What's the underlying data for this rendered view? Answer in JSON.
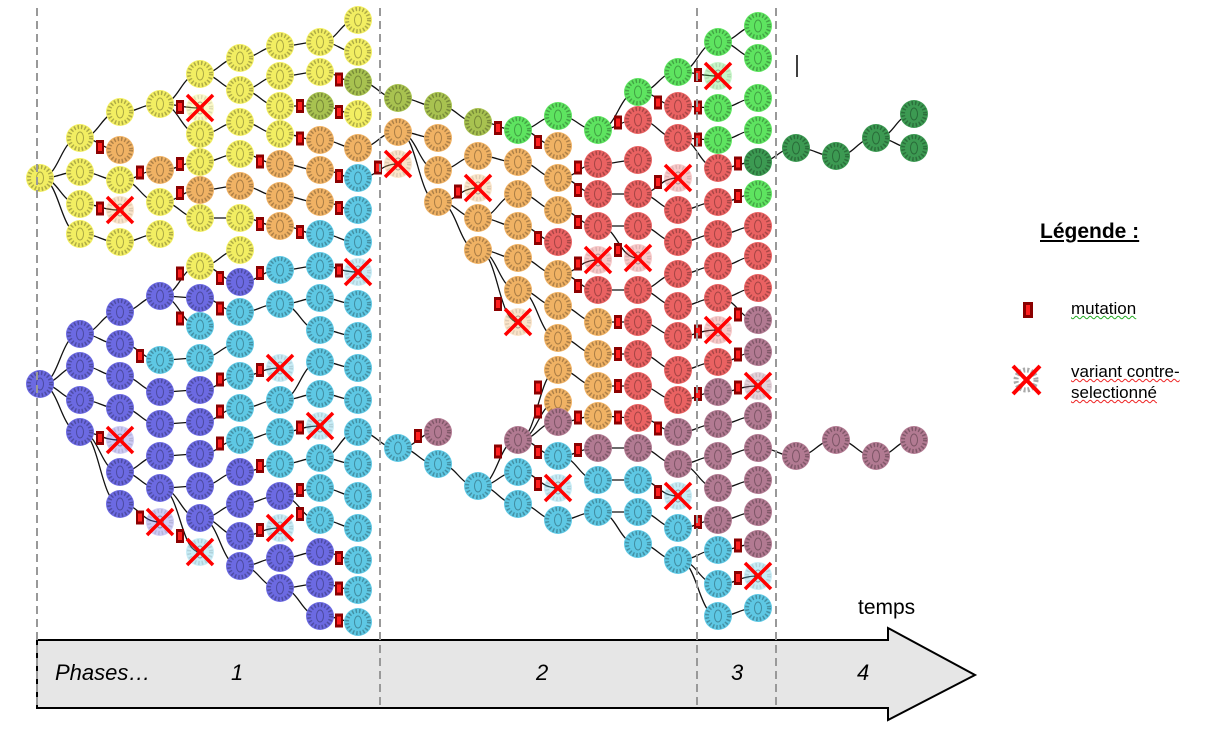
{
  "timeline": {
    "axis_label": "temps",
    "phases_label": "Phases…",
    "phases": [
      "1",
      "2",
      "3",
      "4"
    ]
  },
  "legend": {
    "title": "Légende :",
    "items": [
      {
        "icon": "mutation-marker-icon",
        "label": "mutation",
        "color": "#c00000"
      },
      {
        "icon": "crossed-cell-icon",
        "label": "variant contre-selectionné",
        "color": "#ff0000"
      }
    ]
  },
  "palette": {
    "yellow": "#f2ee62",
    "orange": "#f0b264",
    "indigo": "#6c6ae2",
    "cyan": "#5ec8e4",
    "green": "#5ee460",
    "red": "#ea6262",
    "mauve": "#b27a92",
    "dark_green": "#3c9a52",
    "olive": "#a8c250",
    "mutation": "#c00000",
    "cross": "#ff0000",
    "arrow_fill": "#e6e6e6",
    "phase_divider": "#999999"
  }
}
